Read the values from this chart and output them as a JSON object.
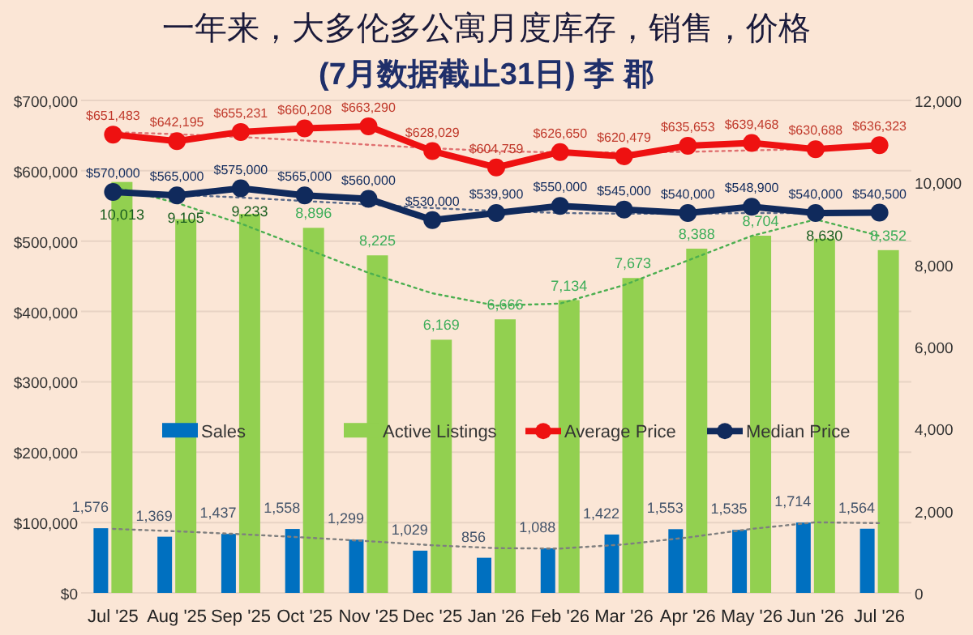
{
  "chart_data": {
    "type": "bar",
    "title": "一年来，大多伦多公寓月度库存，销售，价格",
    "subtitle": "(7月数据截止31日) 李 郡",
    "categories": [
      "Jul '25",
      "Aug '25",
      "Sep '25",
      "Oct '25",
      "Nov '25",
      "Dec '25",
      "Jan '26",
      "Feb '26",
      "Mar '26",
      "Apr '26",
      "May '26",
      "Jun '26",
      "Jul '26"
    ],
    "series": [
      {
        "name": "Sales",
        "axis": "y2",
        "color": "#0070c0",
        "values": [
          1576,
          1369,
          1437,
          1558,
          1299,
          1029,
          856,
          1088,
          1422,
          1553,
          1535,
          1714,
          1564
        ],
        "value_labels": [
          "1,576",
          "1,369",
          "1,437",
          "1,558",
          "1,299",
          "1,029",
          "856",
          "1,088",
          "1,422",
          "1,553",
          "1,535",
          "1,714",
          "1,564"
        ]
      },
      {
        "name": "Active Listings",
        "axis": "y2",
        "color": "#92d050",
        "values": [
          10013,
          9105,
          9233,
          8896,
          8225,
          6169,
          6666,
          7134,
          7673,
          8388,
          8704,
          8630,
          8352
        ],
        "value_labels": [
          "10,013",
          "9,105",
          "9,233",
          "8,896",
          "8,225",
          "6,169",
          "6,666",
          "7,134",
          "7,673",
          "8,388",
          "8,704",
          "8,630",
          "8,352"
        ]
      },
      {
        "name": "Average Price",
        "type": "line",
        "color": "#ee1111",
        "marker": "circle",
        "line_style": "solid",
        "values": [
          651483,
          642195,
          655231,
          660208,
          663290,
          628029,
          604759,
          626650,
          620479,
          635653,
          639468,
          630688,
          636323
        ],
        "value_labels": [
          "$651,483",
          "$642,195",
          "$655,231",
          "$660,208",
          "$663,290",
          "$628,029",
          "$604,759",
          "$626,650",
          "$620,479",
          "$635,653",
          "$639,468",
          "$630,688",
          "$636,323"
        ]
      },
      {
        "name": "Median Price",
        "type": "line",
        "color": "#102a5c",
        "marker": "circle",
        "line_style": "solid",
        "values": [
          570000,
          565000,
          575000,
          565000,
          560000,
          530000,
          539900,
          550000,
          545000,
          540000,
          548900,
          540000,
          540500
        ],
        "value_labels": [
          "$570,000",
          "$565,000",
          "$575,000",
          "$565,000",
          "$560,000",
          "$530,000",
          "$539,900",
          "$550,000",
          "$545,000",
          "$540,000",
          "$548,900",
          "$540,000",
          "$540,500"
        ]
      },
      {
        "type": "line",
        "axis": "y2",
        "color": "#7f7f7f",
        "marker": "none",
        "line_style": "dotted",
        "values": [
          1560,
          1500,
          1430,
          1350,
          1260,
          1160,
          1090,
          1080,
          1180,
          1350,
          1560,
          1720,
          1700
        ]
      },
      {
        "type": "line",
        "axis": "y2",
        "color": "#4caf50",
        "marker": "none",
        "line_style": "dotted",
        "values": [
          9900,
          9500,
          9000,
          8400,
          7800,
          7300,
          7000,
          7050,
          7500,
          8100,
          8700,
          9100,
          8700
        ]
      },
      {
        "type": "line",
        "color": "#e07070",
        "marker": "none",
        "line_style": "dotted",
        "values": [
          655000,
          652000,
          648000,
          643000,
          637000,
          632000,
          628000,
          626000,
          626000,
          627000,
          629000,
          631000,
          633000
        ]
      },
      {
        "type": "line",
        "color": "#5a6a8a",
        "marker": "none",
        "line_style": "dotted",
        "values": [
          570000,
          566000,
          562000,
          557000,
          552000,
          547000,
          543000,
          540000,
          539000,
          539000,
          540000,
          540000,
          541000
        ]
      }
    ],
    "ylim": [
      0,
      700000
    ],
    "yticks": [
      {
        "value": 0,
        "label": "$0"
      },
      {
        "value": 100000,
        "label": "$100,000"
      },
      {
        "value": 200000,
        "label": "$200,000"
      },
      {
        "value": 300000,
        "label": "$300,000"
      },
      {
        "value": 400000,
        "label": "$400,000"
      },
      {
        "value": 500000,
        "label": "$500,000"
      },
      {
        "value": 600000,
        "label": "$600,000"
      },
      {
        "value": 700000,
        "label": "$700,000"
      }
    ],
    "y2lim": [
      0,
      12000
    ],
    "y2ticks": [
      0,
      {
        "value": 2000,
        "label": "2,000"
      },
      {
        "value": 4000,
        "label": "4,000"
      },
      {
        "value": 6000,
        "label": "6,000"
      },
      {
        "value": 8000,
        "label": "8,000"
      },
      {
        "value": 10000,
        "label": "10,000"
      },
      {
        "value": 12000,
        "label": "12,000"
      }
    ],
    "grid": "y",
    "legend": "bottom"
  }
}
